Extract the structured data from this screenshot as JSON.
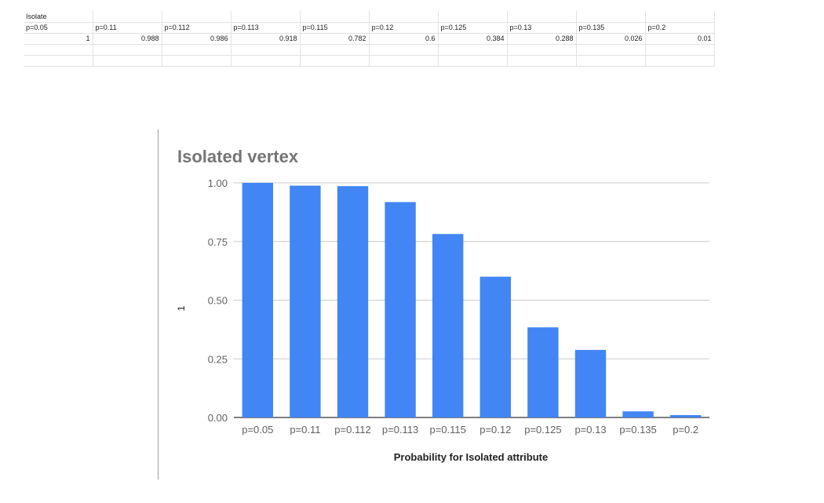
{
  "sheet": {
    "rows": [
      [
        "Isolate",
        "",
        "",
        "",
        "",
        "",
        "",
        "",
        "",
        ""
      ],
      [
        "p=0.05",
        "p=0.11",
        "p=0.112",
        "p=0.113",
        "p=0.115",
        "p=0.12",
        "p=0.125",
        "p=0.13",
        "p=0.135",
        "p=0.2"
      ],
      [
        "1",
        "0.988",
        "0.986",
        "0.918",
        "0.782",
        "0.6",
        "0.384",
        "0.288",
        "0.026",
        "0.01"
      ],
      [
        "",
        "",
        "",
        "",
        "",
        "",
        "",
        "",
        "",
        ""
      ],
      [
        "",
        "",
        "",
        "",
        "",
        "",
        "",
        "",
        "",
        ""
      ]
    ]
  },
  "chart_data": {
    "type": "bar",
    "title": "Isolated vertex",
    "xlabel": "Probability for Isolated attribute",
    "ylabel": "1",
    "categories": [
      "p=0.05",
      "p=0.11",
      "p=0.112",
      "p=0.113",
      "p=0.115",
      "p=0.12",
      "p=0.125",
      "p=0.13",
      "p=0.135",
      "p=0.2"
    ],
    "values": [
      1,
      0.988,
      0.986,
      0.918,
      0.782,
      0.6,
      0.384,
      0.288,
      0.026,
      0.01
    ],
    "ylim": [
      0,
      1
    ],
    "yticks": [
      "0.00",
      "0.25",
      "0.50",
      "0.75",
      "1.00"
    ],
    "grid": true,
    "bar_color": "#4285f4",
    "grid_color": "#cccccc",
    "axis_color": "#333333"
  }
}
